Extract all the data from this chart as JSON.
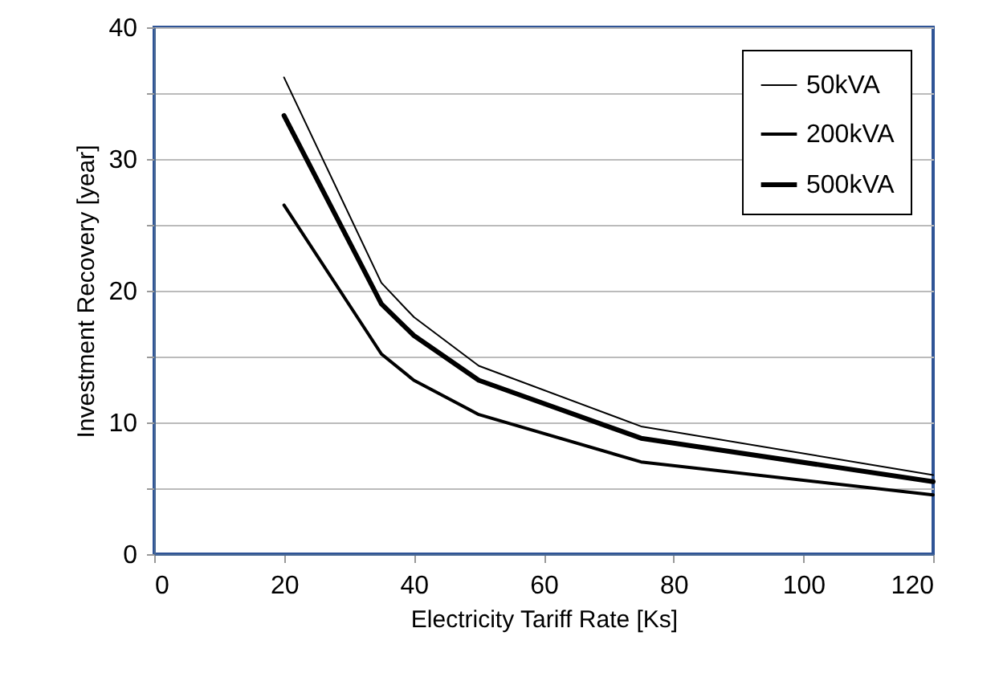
{
  "chart_data": {
    "type": "line",
    "xlabel": "Electricity Tariff Rate [Ks]",
    "ylabel": "Investment Recovery [year]",
    "x": [
      20,
      35,
      40,
      50,
      75,
      120
    ],
    "series": [
      {
        "name": "50kVA",
        "color": "#000000",
        "values": [
          36.2,
          20.6,
          18.0,
          14.3,
          9.7,
          6.0
        ]
      },
      {
        "name": "200kVA",
        "color": "#000000",
        "values": [
          26.5,
          15.2,
          13.2,
          10.6,
          7.0,
          4.5
        ]
      },
      {
        "name": "500kVA",
        "color": "#000000",
        "values": [
          33.3,
          19.0,
          16.6,
          13.2,
          8.8,
          5.5
        ]
      }
    ],
    "xlim": [
      0,
      120
    ],
    "xticks": [
      0,
      20,
      40,
      60,
      80,
      100,
      120
    ],
    "ylim": [
      0,
      40
    ],
    "yticks": [
      0,
      {
        "value": 5,
        "label": null
      },
      10,
      {
        "value": 15,
        "label": null
      },
      20,
      {
        "value": 25,
        "label": null
      },
      30,
      {
        "value": 35,
        "label": null
      },
      40
    ],
    "grid": "y",
    "legend": "top right",
    "marker": "none",
    "line_style": "solid"
  }
}
